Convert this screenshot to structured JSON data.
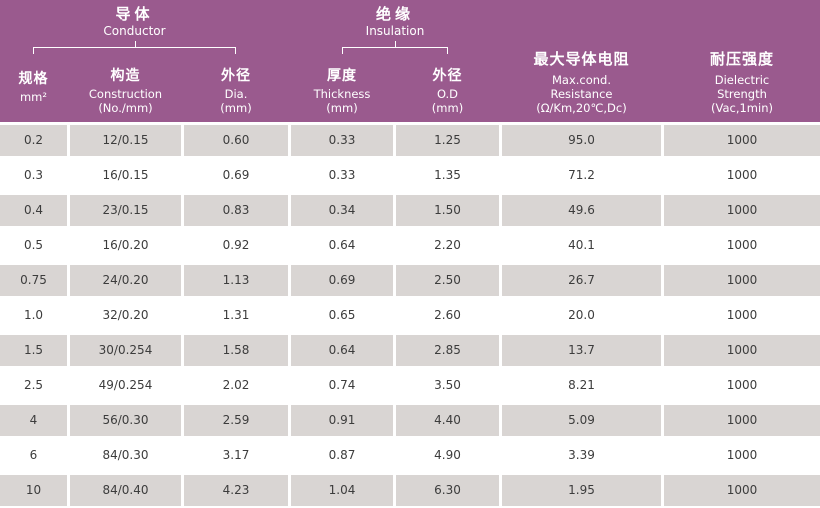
{
  "colors": {
    "header_bg": "#9a5a8e",
    "alt_row_bg": "#d9d5d3",
    "row_bg": "#ffffff",
    "header_text": "#ffffff",
    "body_text": "#3c3c3c"
  },
  "table": {
    "groups": {
      "conductor": {
        "zh": "导体",
        "en": "Conductor"
      },
      "insulation": {
        "zh": "绝缘",
        "en": "Insulation"
      }
    },
    "columns": [
      {
        "id": "spec",
        "zh": "规格",
        "en": [
          "mm²"
        ]
      },
      {
        "id": "construction",
        "zh": "构造",
        "en": [
          "Construction",
          "(No./mm)"
        ]
      },
      {
        "id": "cond_dia",
        "zh": "外径",
        "en": [
          "Dia.",
          "(mm)"
        ]
      },
      {
        "id": "thickness",
        "zh": "厚度",
        "en": [
          "Thickness",
          "(mm)"
        ]
      },
      {
        "id": "od",
        "zh": "外径",
        "en": [
          "O.D",
          "(mm)"
        ]
      },
      {
        "id": "resistance",
        "zh": "最大导体电阻",
        "en": [
          "Max.cond.",
          "Resistance",
          "(Ω/Km,20℃,Dc)"
        ]
      },
      {
        "id": "dielectric",
        "zh": "耐压强度",
        "en": [
          "Dielectric",
          "Strength",
          "(Vac,1min)"
        ]
      }
    ],
    "rows": [
      [
        "0.2",
        "12/0.15",
        "0.60",
        "0.33",
        "1.25",
        "95.0",
        "1000"
      ],
      [
        "0.3",
        "16/0.15",
        "0.69",
        "0.33",
        "1.35",
        "71.2",
        "1000"
      ],
      [
        "0.4",
        "23/0.15",
        "0.83",
        "0.34",
        "1.50",
        "49.6",
        "1000"
      ],
      [
        "0.5",
        "16/0.20",
        "0.92",
        "0.64",
        "2.20",
        "40.1",
        "1000"
      ],
      [
        "0.75",
        "24/0.20",
        "1.13",
        "0.69",
        "2.50",
        "26.7",
        "1000"
      ],
      [
        "1.0",
        "32/0.20",
        "1.31",
        "0.65",
        "2.60",
        "20.0",
        "1000"
      ],
      [
        "1.5",
        "30/0.254",
        "1.58",
        "0.64",
        "2.85",
        "13.7",
        "1000"
      ],
      [
        "2.5",
        "49/0.254",
        "2.02",
        "0.74",
        "3.50",
        "8.21",
        "1000"
      ],
      [
        "4",
        "56/0.30",
        "2.59",
        "0.91",
        "4.40",
        "5.09",
        "1000"
      ],
      [
        "6",
        "84/0.30",
        "3.17",
        "0.87",
        "4.90",
        "3.39",
        "1000"
      ],
      [
        "10",
        "84/0.40",
        "4.23",
        "1.04",
        "6.30",
        "1.95",
        "1000"
      ]
    ]
  }
}
